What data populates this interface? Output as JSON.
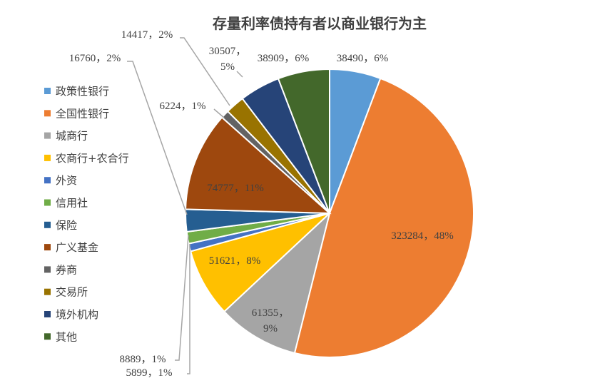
{
  "chart_data": {
    "type": "pie",
    "title": "存量利率债持有者以商业银行为主",
    "legend_position": "left",
    "slices": [
      {
        "name": "政策性银行",
        "value": 38490,
        "percent": "6%",
        "label": "38490，6%",
        "color": "#5B9BD5"
      },
      {
        "name": "全国性银行",
        "value": 323284,
        "percent": "48%",
        "label": "323284，48%",
        "color": "#ED7D31"
      },
      {
        "name": "城商行",
        "value": 61355,
        "percent": "9%",
        "label": "61355，9%",
        "color": "#A5A5A5"
      },
      {
        "name": "农商行+农合行",
        "value": 51621,
        "percent": "8%",
        "label": "51621，8%",
        "color": "#FFC000"
      },
      {
        "name": "外资",
        "value": 5899,
        "percent": "1%",
        "label": "5899，1%",
        "color": "#4472C4"
      },
      {
        "name": "信用社",
        "value": 8889,
        "percent": "1%",
        "label": "8889，1%",
        "color": "#70AD47"
      },
      {
        "name": "保险",
        "value": 16760,
        "percent": "2%",
        "label": "16760，2%",
        "color": "#255E91"
      },
      {
        "name": "广义基金",
        "value": 74777,
        "percent": "11%",
        "label": "74777，11%",
        "color": "#9E480E"
      },
      {
        "name": "券商",
        "value": 6224,
        "percent": "1%",
        "label": "6224，1%",
        "color": "#636363"
      },
      {
        "name": "交易所",
        "value": 14417,
        "percent": "2%",
        "label": "14417，2%",
        "color": "#997300"
      },
      {
        "name": "境外机构",
        "value": 30507,
        "percent": "5%",
        "label": "30507，5%",
        "color": "#264478"
      },
      {
        "name": "其他",
        "value": 38909,
        "percent": "6%",
        "label": "38909，6%",
        "color": "#43682B"
      }
    ]
  }
}
